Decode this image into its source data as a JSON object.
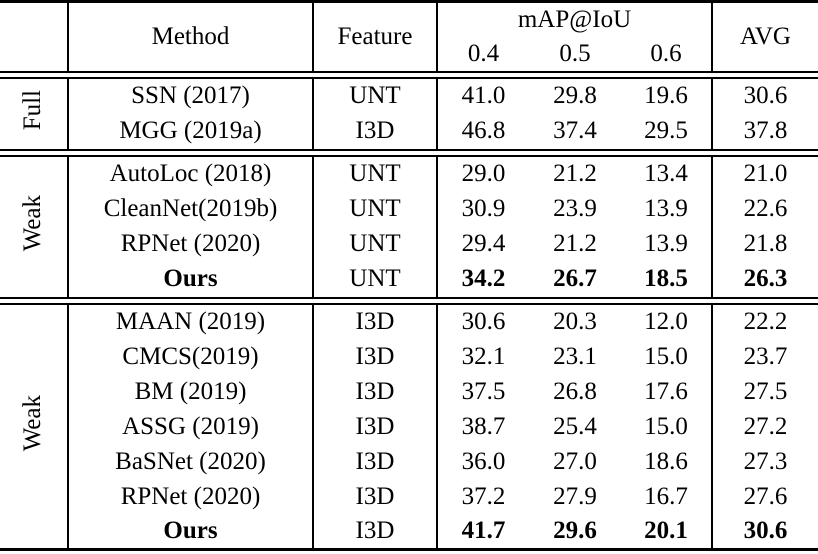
{
  "table": {
    "header": {
      "method": "Method",
      "feature": "Feature",
      "map_group": "mAP@IoU",
      "iou_cols": [
        "0.4",
        "0.5",
        "0.6"
      ],
      "avg": "AVG"
    },
    "groups": [
      {
        "label": "Full",
        "rows": [
          {
            "method": "SSN (2017)",
            "feature": "UNT",
            "values": [
              "41.0",
              "29.8",
              "19.6"
            ],
            "avg": "30.6",
            "bold": false
          },
          {
            "method": "MGG (2019a)",
            "feature": "I3D",
            "values": [
              "46.8",
              "37.4",
              "29.5"
            ],
            "avg": "37.8",
            "bold": false
          }
        ]
      },
      {
        "label": "Weak",
        "rows": [
          {
            "method": "AutoLoc (2018)",
            "feature": "UNT",
            "values": [
              "29.0",
              "21.2",
              "13.4"
            ],
            "avg": "21.0",
            "bold": false
          },
          {
            "method": "CleanNet(2019b)",
            "feature": "UNT",
            "values": [
              "30.9",
              "23.9",
              "13.9"
            ],
            "avg": "22.6",
            "bold": false
          },
          {
            "method": "RPNet (2020)",
            "feature": "UNT",
            "values": [
              "29.4",
              "21.2",
              "13.9"
            ],
            "avg": "21.8",
            "bold": false
          },
          {
            "method": "Ours",
            "feature": "UNT",
            "values": [
              "34.2",
              "26.7",
              "18.5"
            ],
            "avg": "26.3",
            "bold": true
          }
        ]
      },
      {
        "label": "Weak",
        "rows": [
          {
            "method": "MAAN (2019)",
            "feature": "I3D",
            "values": [
              "30.6",
              "20.3",
              "12.0"
            ],
            "avg": "22.2",
            "bold": false
          },
          {
            "method": "CMCS(2019)",
            "feature": "I3D",
            "values": [
              "32.1",
              "23.1",
              "15.0"
            ],
            "avg": "23.7",
            "bold": false
          },
          {
            "method": "BM (2019)",
            "feature": "I3D",
            "values": [
              "37.5",
              "26.8",
              "17.6"
            ],
            "avg": "27.5",
            "bold": false
          },
          {
            "method": "ASSG (2019)",
            "feature": "I3D",
            "values": [
              "38.7",
              "25.4",
              "15.0"
            ],
            "avg": "27.2",
            "bold": false
          },
          {
            "method": "BaSNet (2020)",
            "feature": "I3D",
            "values": [
              "36.0",
              "27.0",
              "18.6"
            ],
            "avg": "27.3",
            "bold": false
          },
          {
            "method": "RPNet (2020)",
            "feature": "I3D",
            "values": [
              "37.2",
              "27.9",
              "16.7"
            ],
            "avg": "27.6",
            "bold": false
          },
          {
            "method": "Ours",
            "feature": "I3D",
            "values": [
              "41.7",
              "29.6",
              "20.1"
            ],
            "avg": "30.6",
            "bold": true
          }
        ]
      }
    ]
  }
}
